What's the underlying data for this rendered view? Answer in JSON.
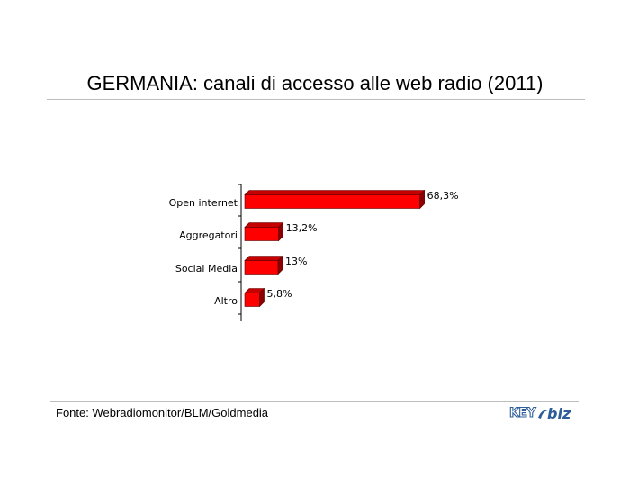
{
  "slide": {
    "title": "GERMANIA: canali di accesso alle web radio (2011)",
    "source": "Fonte: Webradiomonitor/BLM/Goldmedia"
  },
  "logo": {
    "key_text": "KEY",
    "biz_text": "biz",
    "brand_color": "#2f5d9a"
  },
  "colors": {
    "bar_front": "#ff0000",
    "bar_top": "#c40000",
    "bar_side": "#8a0000",
    "axis": "#000000"
  },
  "chart_data": {
    "type": "bar",
    "orientation": "horizontal",
    "three_d": true,
    "categories": [
      "Open internet",
      "Aggregatori",
      "Social Media",
      "Altro"
    ],
    "values": [
      68.3,
      13.2,
      13,
      5.8
    ],
    "value_labels": [
      "68,3%",
      "13,2%",
      "13%",
      "5,8%"
    ],
    "unit": "%",
    "xlim": [
      0,
      100
    ],
    "grid": false,
    "legend": "none",
    "title": "GERMANIA: canali di accesso alle web radio (2011)",
    "xlabel": "",
    "ylabel": ""
  }
}
